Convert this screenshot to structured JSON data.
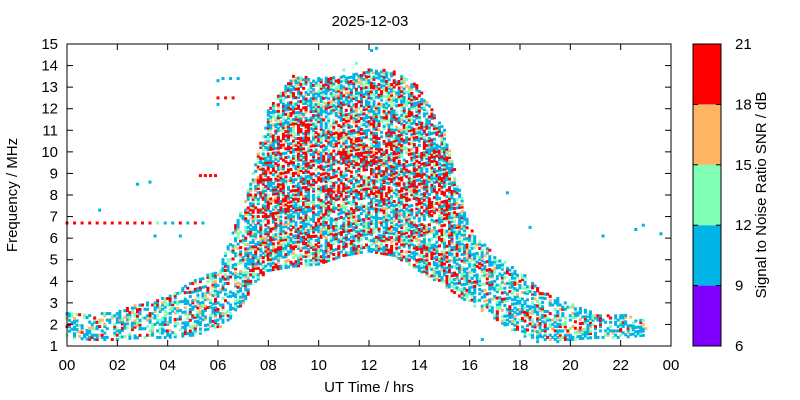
{
  "chart_data": {
    "type": "heatmap",
    "title": "2025-12-03",
    "xlabel": "UT Time / hrs",
    "ylabel": "Frequency / MHz",
    "xlim": [
      0,
      24
    ],
    "ylim": [
      1,
      15
    ],
    "xticks": [
      "00",
      "02",
      "04",
      "06",
      "08",
      "10",
      "12",
      "14",
      "16",
      "18",
      "20",
      "22",
      "00"
    ],
    "yticks": [
      "1",
      "2",
      "3",
      "4",
      "5",
      "6",
      "7",
      "8",
      "9",
      "10",
      "11",
      "12",
      "13",
      "14",
      "15"
    ],
    "grid": false,
    "colorbar": {
      "label": "Signal to Noise Ratio SNR / dB",
      "ticks": [
        "6",
        "9",
        "12",
        "15",
        "18",
        "21"
      ],
      "bands": [
        {
          "from": 6,
          "to": 9,
          "color": "#8000ff"
        },
        {
          "from": 9,
          "to": 12,
          "color": "#00b4e6"
        },
        {
          "from": 12,
          "to": 15,
          "color": "#80ffb4"
        },
        {
          "from": 15,
          "to": 18,
          "color": "#ffb464"
        },
        {
          "from": 18,
          "to": 21,
          "color": "#ff0000"
        }
      ]
    },
    "envelope_hours": [
      0,
      1,
      2,
      3,
      4,
      5,
      6,
      6.5,
      7,
      7.5,
      8,
      9,
      10,
      11,
      12,
      13,
      14,
      15,
      16,
      17,
      18,
      19,
      20,
      21,
      22,
      23
    ],
    "envelope_fmin": [
      1.4,
      1.3,
      1.3,
      1.4,
      1.4,
      1.5,
      1.8,
      2.3,
      3.0,
      4.0,
      4.5,
      4.7,
      4.8,
      5.2,
      5.4,
      5.2,
      4.5,
      3.8,
      3.0,
      2.3,
      1.5,
      1.3,
      1.3,
      1.4,
      1.4,
      1.5
    ],
    "envelope_fmax": [
      2.6,
      2.5,
      2.6,
      3.0,
      3.3,
      4.0,
      4.5,
      6.0,
      7.5,
      9.5,
      12.0,
      13.5,
      13.4,
      13.5,
      13.8,
      13.8,
      13.0,
      11.0,
      6.5,
      5.2,
      4.5,
      3.5,
      3.0,
      2.5,
      2.5,
      2.2
    ],
    "outlier_points": [
      {
        "x": 0.0,
        "y": 6.7,
        "snr": 19
      },
      {
        "x": 0.3,
        "y": 6.7,
        "snr": 19
      },
      {
        "x": 0.6,
        "y": 6.7,
        "snr": 19
      },
      {
        "x": 0.9,
        "y": 6.7,
        "snr": 19
      },
      {
        "x": 1.2,
        "y": 6.7,
        "snr": 19
      },
      {
        "x": 1.5,
        "y": 6.7,
        "snr": 19
      },
      {
        "x": 1.8,
        "y": 6.7,
        "snr": 19
      },
      {
        "x": 2.1,
        "y": 6.7,
        "snr": 19
      },
      {
        "x": 2.4,
        "y": 6.7,
        "snr": 19
      },
      {
        "x": 2.7,
        "y": 6.7,
        "snr": 19
      },
      {
        "x": 3.0,
        "y": 6.7,
        "snr": 19
      },
      {
        "x": 3.3,
        "y": 6.7,
        "snr": 19
      },
      {
        "x": 3.6,
        "y": 6.7,
        "snr": 13
      },
      {
        "x": 3.9,
        "y": 6.7,
        "snr": 10
      },
      {
        "x": 4.2,
        "y": 6.7,
        "snr": 10
      },
      {
        "x": 4.5,
        "y": 6.7,
        "snr": 19
      },
      {
        "x": 4.8,
        "y": 6.7,
        "snr": 10
      },
      {
        "x": 5.1,
        "y": 6.7,
        "snr": 19
      },
      {
        "x": 5.4,
        "y": 6.7,
        "snr": 10
      },
      {
        "x": 1.3,
        "y": 7.3,
        "snr": 10
      },
      {
        "x": 3.5,
        "y": 6.1,
        "snr": 10
      },
      {
        "x": 4.5,
        "y": 6.1,
        "snr": 10
      },
      {
        "x": 2.8,
        "y": 8.5,
        "snr": 10
      },
      {
        "x": 3.3,
        "y": 8.6,
        "snr": 10
      },
      {
        "x": 5.3,
        "y": 8.9,
        "snr": 19
      },
      {
        "x": 5.5,
        "y": 8.9,
        "snr": 19
      },
      {
        "x": 5.7,
        "y": 8.9,
        "snr": 19
      },
      {
        "x": 5.9,
        "y": 8.9,
        "snr": 19
      },
      {
        "x": 6.0,
        "y": 12.5,
        "snr": 19
      },
      {
        "x": 6.3,
        "y": 12.5,
        "snr": 19
      },
      {
        "x": 6.6,
        "y": 12.5,
        "snr": 19
      },
      {
        "x": 6.0,
        "y": 12.2,
        "snr": 10
      },
      {
        "x": 6.0,
        "y": 13.3,
        "snr": 10
      },
      {
        "x": 6.2,
        "y": 13.4,
        "snr": 10
      },
      {
        "x": 6.5,
        "y": 13.4,
        "snr": 10
      },
      {
        "x": 6.8,
        "y": 13.4,
        "snr": 10
      },
      {
        "x": 12.1,
        "y": 14.7,
        "snr": 10
      },
      {
        "x": 12.3,
        "y": 14.8,
        "snr": 10
      },
      {
        "x": 11.5,
        "y": 14.1,
        "snr": 13
      },
      {
        "x": 11.0,
        "y": 13.8,
        "snr": 13
      },
      {
        "x": 17.5,
        "y": 8.1,
        "snr": 10
      },
      {
        "x": 18.4,
        "y": 6.5,
        "snr": 10
      },
      {
        "x": 21.3,
        "y": 6.1,
        "snr": 10
      },
      {
        "x": 22.6,
        "y": 6.4,
        "snr": 10
      },
      {
        "x": 22.9,
        "y": 6.6,
        "snr": 10
      },
      {
        "x": 23.6,
        "y": 6.2,
        "snr": 10
      },
      {
        "x": 16.5,
        "y": 1.3,
        "snr": 10
      },
      {
        "x": 18.7,
        "y": 1.2,
        "snr": 10
      },
      {
        "x": 19.5,
        "y": 1.2,
        "snr": 10
      }
    ]
  }
}
